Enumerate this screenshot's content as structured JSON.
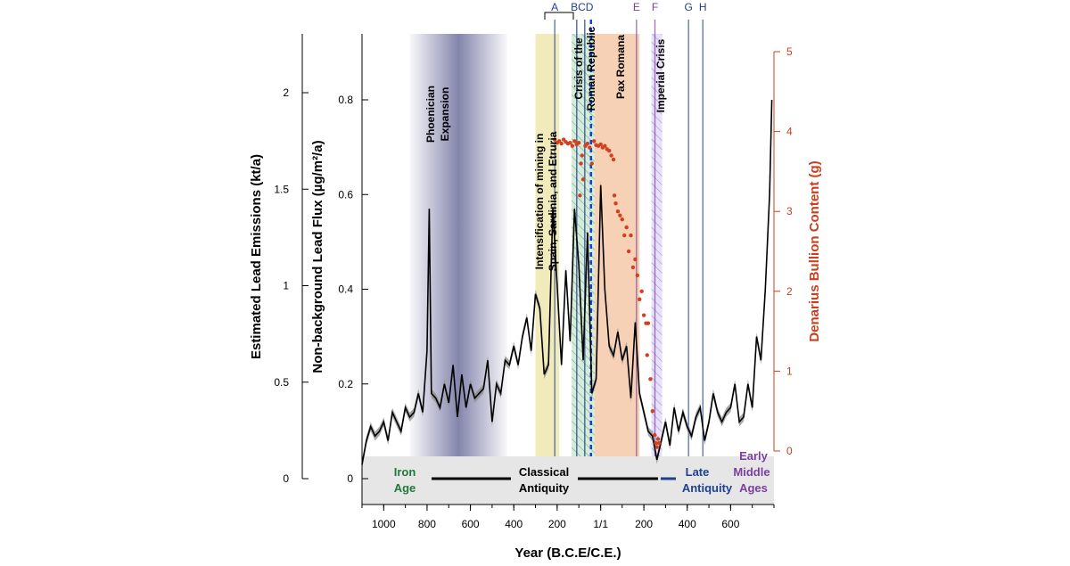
{
  "chart_data": {
    "type": "line",
    "xlabel": "Year (B.C.E/C.E.)",
    "ylabel_left_outer": "Estimated Lead Emissions (kt/a)",
    "ylabel_left_inner": "Non-background Lead Flux (µg/m²/a)",
    "ylabel_right": "Denarius Bullion Content (g)",
    "xlim": [
      -1100,
      800
    ],
    "x_ticks": [
      {
        "value": -1000,
        "label": "1000"
      },
      {
        "value": -800,
        "label": "800"
      },
      {
        "value": -600,
        "label": "600"
      },
      {
        "value": -400,
        "label": "400"
      },
      {
        "value": -200,
        "label": "200"
      },
      {
        "value": 1,
        "label": "1/1"
      },
      {
        "value": 200,
        "label": "200"
      },
      {
        "value": 400,
        "label": "400"
      },
      {
        "value": 600,
        "label": "600"
      }
    ],
    "emissions_axis": {
      "ylim": [
        0,
        2.2
      ],
      "ticks": [
        {
          "value": 0,
          "label": "0"
        },
        {
          "value": 0.5,
          "label": "0.5"
        },
        {
          "value": 1,
          "label": "1"
        },
        {
          "value": 1.5,
          "label": "1.5"
        },
        {
          "value": 2,
          "label": "2"
        }
      ]
    },
    "flux_axis": {
      "ylim": [
        0,
        0.84
      ],
      "ticks": [
        {
          "value": 0,
          "label": "0"
        },
        {
          "value": 0.2,
          "label": "0.2"
        },
        {
          "value": 0.4,
          "label": "0.4"
        },
        {
          "value": 0.6,
          "label": "0.6"
        },
        {
          "value": 0.8,
          "label": "0.8"
        }
      ]
    },
    "denarius_axis": {
      "ylim": [
        0,
        5
      ],
      "ticks": [
        {
          "value": 0,
          "label": "0"
        },
        {
          "value": 1,
          "label": "1"
        },
        {
          "value": 2,
          "label": "2"
        },
        {
          "value": 3,
          "label": "3"
        },
        {
          "value": 4,
          "label": "4"
        },
        {
          "value": 5,
          "label": "5"
        }
      ]
    },
    "lead_flux_series": {
      "x": [
        -1100,
        -1080,
        -1060,
        -1040,
        -1020,
        -1000,
        -980,
        -960,
        -940,
        -920,
        -900,
        -880,
        -860,
        -840,
        -820,
        -800,
        -790,
        -780,
        -760,
        -740,
        -720,
        -700,
        -680,
        -660,
        -640,
        -620,
        -600,
        -580,
        -560,
        -540,
        -520,
        -500,
        -480,
        -460,
        -440,
        -420,
        -400,
        -380,
        -360,
        -340,
        -320,
        -300,
        -280,
        -260,
        -240,
        -220,
        -200,
        -180,
        -160,
        -140,
        -120,
        -100,
        -80,
        -60,
        -40,
        -20,
        1,
        20,
        40,
        60,
        80,
        100,
        120,
        140,
        160,
        180,
        200,
        220,
        240,
        260,
        280,
        300,
        320,
        340,
        360,
        380,
        400,
        420,
        440,
        460,
        480,
        500,
        520,
        540,
        560,
        580,
        600,
        620,
        640,
        660,
        680,
        700,
        720,
        740,
        760,
        780,
        790
      ],
      "values": [
        0.03,
        0.08,
        0.11,
        0.09,
        0.1,
        0.12,
        0.08,
        0.14,
        0.12,
        0.1,
        0.15,
        0.13,
        0.14,
        0.18,
        0.14,
        0.27,
        0.57,
        0.18,
        0.17,
        0.15,
        0.2,
        0.16,
        0.24,
        0.13,
        0.22,
        0.15,
        0.2,
        0.17,
        0.18,
        0.19,
        0.25,
        0.12,
        0.2,
        0.18,
        0.25,
        0.24,
        0.28,
        0.24,
        0.3,
        0.34,
        0.27,
        0.39,
        0.36,
        0.22,
        0.24,
        0.57,
        0.41,
        0.24,
        0.44,
        0.29,
        0.57,
        0.45,
        0.25,
        0.52,
        0.18,
        0.21,
        0.62,
        0.4,
        0.28,
        0.26,
        0.31,
        0.25,
        0.28,
        0.17,
        0.33,
        0.18,
        0.14,
        0.1,
        0.09,
        0.04,
        0.08,
        0.12,
        0.07,
        0.15,
        0.1,
        0.14,
        0.11,
        0.09,
        0.13,
        0.15,
        0.08,
        0.12,
        0.18,
        0.14,
        0.12,
        0.14,
        0.15,
        0.2,
        0.12,
        0.13,
        0.2,
        0.15,
        0.3,
        0.25,
        0.4,
        0.6,
        0.8
      ]
    },
    "denarius_series": {
      "x": [
        -211,
        -200,
        -190,
        -180,
        -170,
        -160,
        -150,
        -140,
        -130,
        -120,
        -110,
        -100,
        -95,
        -90,
        -85,
        -80,
        -70,
        -60,
        -50,
        -40,
        -30,
        -20,
        -10,
        1,
        10,
        20,
        30,
        40,
        50,
        60,
        64,
        70,
        80,
        90,
        100,
        110,
        120,
        130,
        140,
        150,
        160,
        170,
        180,
        190,
        200,
        210,
        215,
        220,
        230,
        240,
        250,
        255,
        260,
        265,
        270
      ],
      "values": [
        3.9,
        3.86,
        3.88,
        3.85,
        3.9,
        3.87,
        3.85,
        3.86,
        3.82,
        3.88,
        3.84,
        3.86,
        3.2,
        3.6,
        3.7,
        3.4,
        3.82,
        3.85,
        3.8,
        3.6,
        3.88,
        3.83,
        3.82,
        3.84,
        3.8,
        3.82,
        3.78,
        3.76,
        3.7,
        3.65,
        3.2,
        3.1,
        3.0,
        2.95,
        2.9,
        2.7,
        2.8,
        2.5,
        2.7,
        2.3,
        2.4,
        2.2,
        1.9,
        2.0,
        1.7,
        1.6,
        1.2,
        1.6,
        0.9,
        0.5,
        0.2,
        0.1,
        0.05,
        0.15,
        0.1
      ]
    },
    "shaded_bands": [
      {
        "label": "Phoenician Expansion",
        "x": [
          -880,
          -430
        ],
        "color": "#7e7fa8"
      },
      {
        "label": "Intensification of mining in Spain, Sardinia, and Etruria",
        "x": [
          -300,
          -190
        ],
        "color": "#eee8b0"
      },
      {
        "label": "Crisis of the Roman Republic",
        "x": [
          -133,
          -27
        ],
        "color": "#cfe8d4"
      },
      {
        "label": "Pax Romana",
        "x": [
          -27,
          180
        ],
        "color": "#f6c9a8"
      },
      {
        "label": "Imperial Crisis",
        "x": [
          235,
          284
        ],
        "color": "#d7cbe4"
      }
    ],
    "events": [
      {
        "label": "A",
        "x": -211,
        "color": "#1f3f91"
      },
      {
        "label": "BCD",
        "x": -85,
        "color": "#1f3f91"
      },
      {
        "label": "E",
        "x": 166,
        "color": "#7b3f9e"
      },
      {
        "label": "F",
        "x": 251,
        "color": "#7b3f9e"
      },
      {
        "label": "G",
        "x": 406,
        "color": "#1f3f91"
      },
      {
        "label": "H",
        "x": 472,
        "color": "#1f3f91"
      }
    ],
    "periods": {
      "iron_age": {
        "label_1": "Iron",
        "label_2": "Age",
        "color": "#1f7a3a"
      },
      "classical": {
        "label_1": "Classical",
        "label_2": "Antiquity",
        "color": "#000000"
      },
      "late": {
        "label_1": "Late",
        "label_2": "Antiquity",
        "color": "#1f3f91"
      },
      "early_middle": {
        "label_1": "Early",
        "label_2": "Middle",
        "label_3": "Ages",
        "color": "#7b3f9e"
      }
    },
    "band_labels": {
      "phoenician_1": "Phoenician",
      "phoenician_2": "Expansion",
      "mining_1": "Intensification of mining in",
      "mining_2": "Spain, Sardinia, and Etruria",
      "crisis_1": "Crisis of the",
      "crisis_2": "Roman Republic",
      "pax": "Pax Romana",
      "imperial": "Imperial Crisis"
    }
  }
}
